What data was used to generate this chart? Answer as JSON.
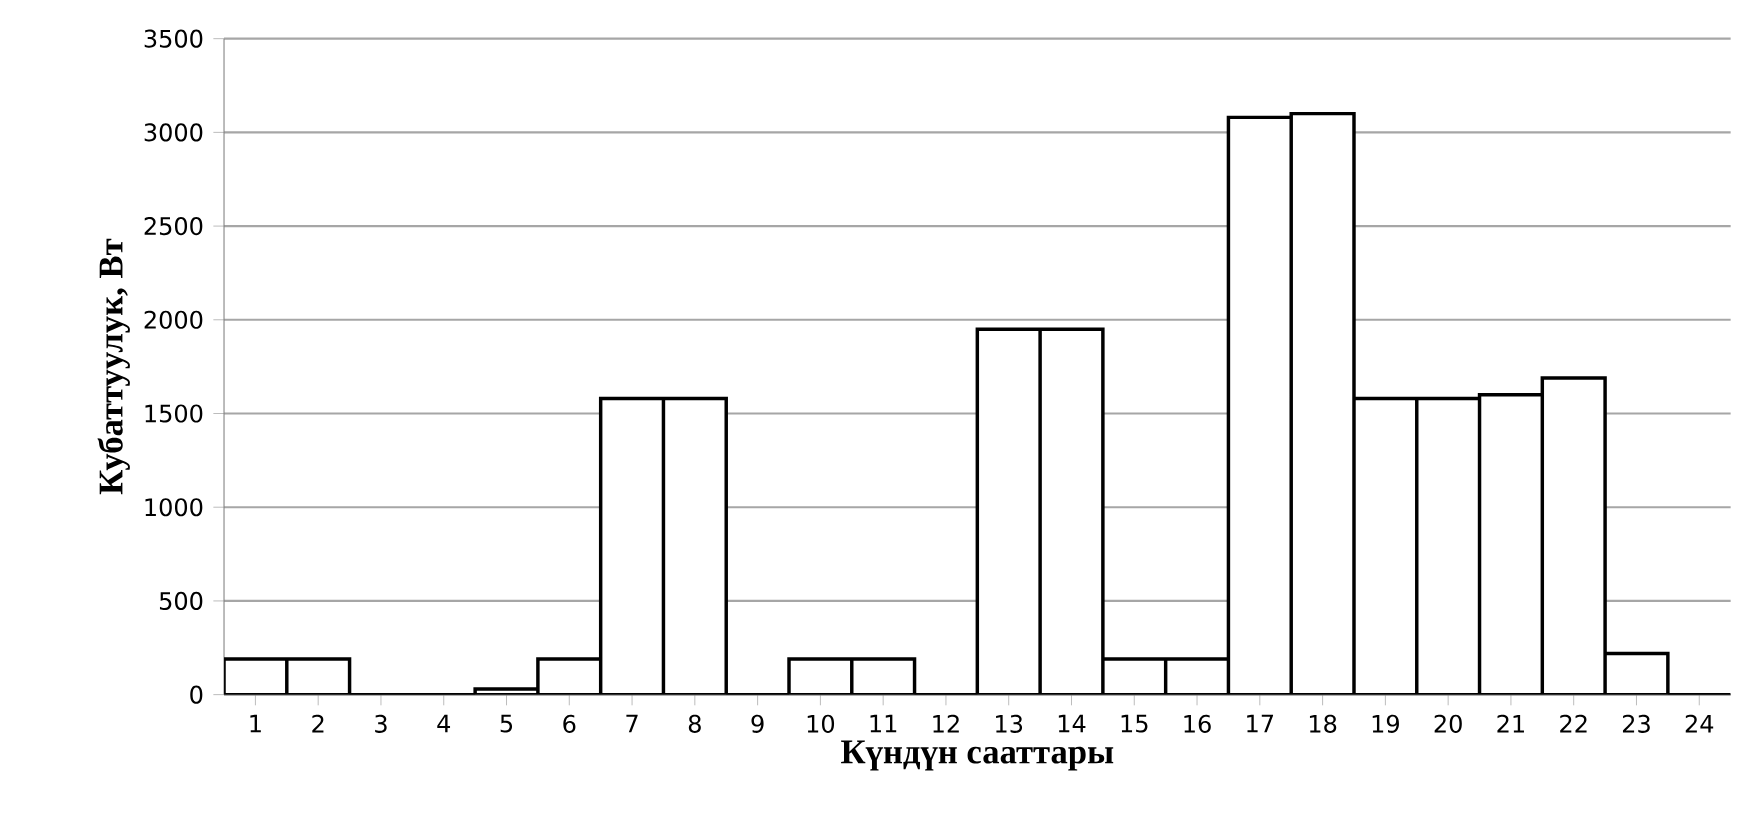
{
  "chart_data": {
    "type": "bar",
    "xlabel": "Күндүн сааттары",
    "ylabel": "Кубаттуулук, Вт",
    "categories": [
      "1",
      "2",
      "3",
      "4",
      "5",
      "6",
      "7",
      "8",
      "9",
      "10",
      "11",
      "12",
      "13",
      "14",
      "15",
      "16",
      "17",
      "18",
      "19",
      "20",
      "21",
      "22",
      "23",
      "24"
    ],
    "values": [
      190,
      190,
      0,
      0,
      30,
      190,
      1580,
      1580,
      0,
      190,
      190,
      0,
      1950,
      1950,
      190,
      190,
      3080,
      3100,
      1580,
      1580,
      1600,
      1690,
      220,
      0
    ],
    "color": "#ffffff",
    "ylim": [
      0,
      3500
    ],
    "yticks": [
      0,
      500,
      1000,
      1500,
      2000,
      2500,
      3000,
      3500
    ],
    "grid": "y"
  }
}
